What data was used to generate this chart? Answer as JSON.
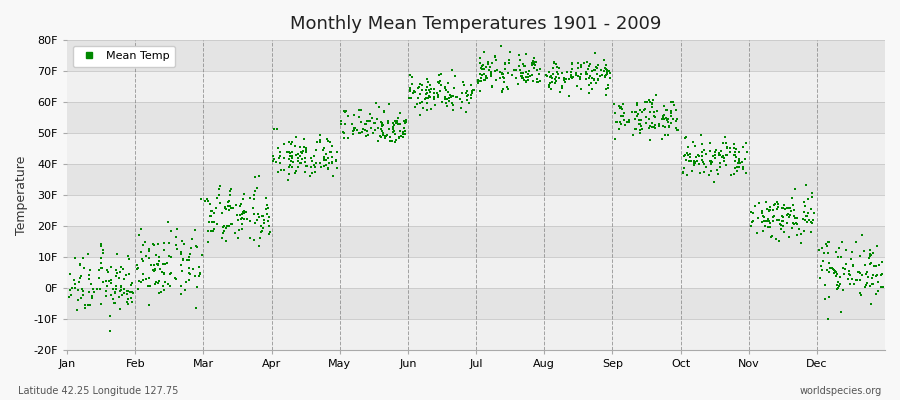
{
  "title": "Monthly Mean Temperatures 1901 - 2009",
  "ylabel": "Temperature",
  "subtitle_left": "Latitude 42.25 Longitude 127.75",
  "subtitle_right": "worldspecies.org",
  "months": [
    "Jan",
    "Feb",
    "Mar",
    "Apr",
    "May",
    "Jun",
    "Jul",
    "Aug",
    "Sep",
    "Oct",
    "Nov",
    "Dec"
  ],
  "month_means_F": [
    1.0,
    7.0,
    23.0,
    42.0,
    52.5,
    63.0,
    69.5,
    68.5,
    55.0,
    41.5,
    23.0,
    6.0
  ],
  "month_stds_F": [
    5.0,
    5.5,
    5.0,
    3.5,
    3.0,
    3.0,
    2.5,
    2.5,
    3.0,
    3.5,
    4.0,
    5.0
  ],
  "n_years": 109,
  "dot_color": "#008800",
  "dot_size": 3,
  "fig_bg_color": "#f8f8f8",
  "plot_bg_color_light": "#f0f0f0",
  "plot_bg_color_dark": "#e4e4e4",
  "ylim_min": -20,
  "ylim_max": 80,
  "yticks": [
    -20,
    -10,
    0,
    10,
    20,
    30,
    40,
    50,
    60,
    70,
    80
  ],
  "ytick_labels": [
    "-20F",
    "-10F",
    "0F",
    "10F",
    "20F",
    "30F",
    "40F",
    "50F",
    "60F",
    "70F",
    "80F"
  ],
  "vline_color": "#808080",
  "hline_color": "#c8c8c8",
  "legend_label": "Mean Temp",
  "title_fontsize": 13,
  "axis_fontsize": 8,
  "ylabel_fontsize": 9
}
